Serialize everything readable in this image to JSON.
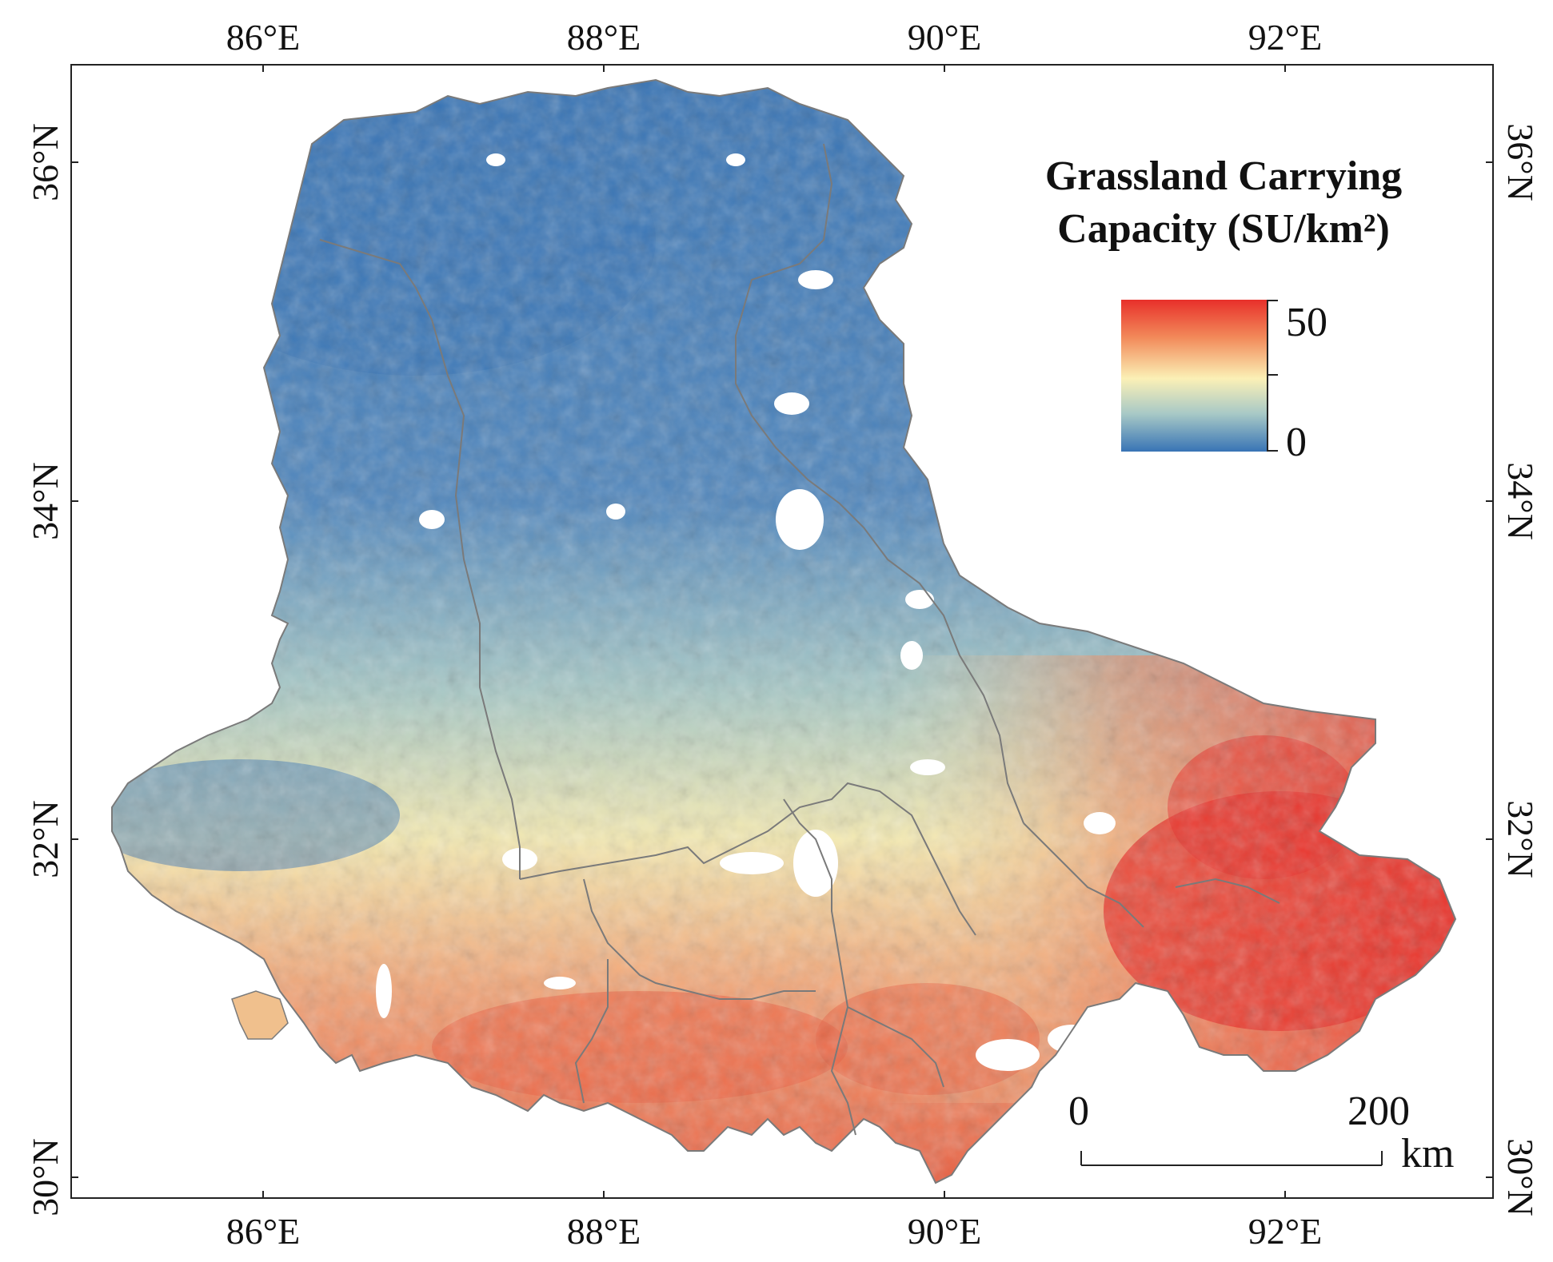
{
  "map": {
    "legend": {
      "title_line1": "Grassland Carrying",
      "title_line2": "Capacity (SU/km²)",
      "max_label": "50",
      "min_label": "0",
      "colors": [
        "#e8302a",
        "#f28a5a",
        "#fbf0b6",
        "#a8c9c6",
        "#3874b5"
      ]
    },
    "longitude_labels": [
      "86°E",
      "88°E",
      "90°E",
      "92°E"
    ],
    "latitude_labels": [
      "36°N",
      "34°N",
      "32°N",
      "30°N"
    ],
    "scale_bar": {
      "start_label": "0",
      "end_label": "200",
      "unit_label": "km"
    },
    "palette": {
      "low": "#3874b5",
      "mid_low": "#a8c9c6",
      "mid": "#fbf0b6",
      "mid_high": "#f28a5a",
      "high": "#e8302a",
      "boundary": "#7a7a7a"
    }
  }
}
